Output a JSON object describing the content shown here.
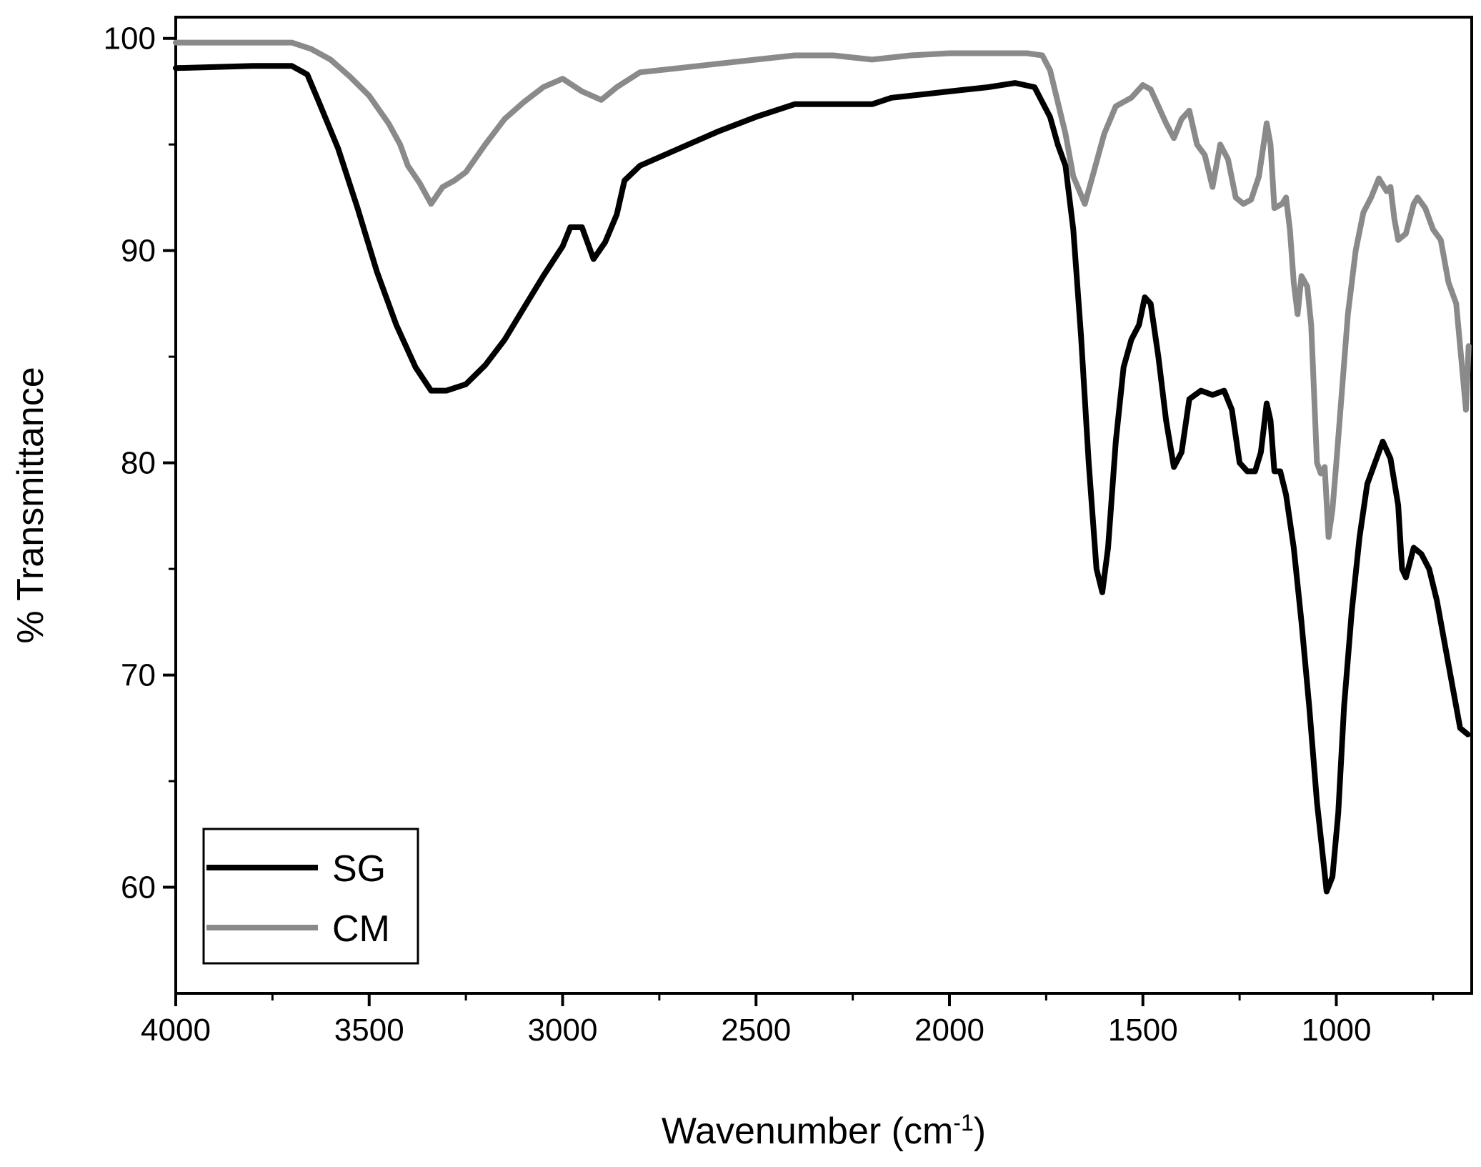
{
  "chart_data": {
    "type": "line",
    "title": "",
    "xlabel": "Wavenumber (cm",
    "xlabel_sup": "-1",
    "xlabel_close": ")",
    "ylabel": "% Transmittance",
    "xlim": [
      4000,
      650
    ],
    "ylim": [
      55,
      101
    ],
    "x_reversed": true,
    "x_ticks": [
      {
        "value": 4000,
        "label": "4000"
      },
      {
        "value": 3500,
        "label": "3500"
      },
      {
        "value": 3000,
        "label": "3000"
      },
      {
        "value": 2500,
        "label": "2500"
      },
      {
        "value": 2000,
        "label": "2000"
      },
      {
        "value": 1500,
        "label": "1500"
      },
      {
        "value": 1000,
        "label": "1000"
      }
    ],
    "x_minor_ticks": [
      3750,
      3250,
      2750,
      2250,
      1750,
      1250,
      750
    ],
    "y_ticks": [
      {
        "value": 60,
        "label": "60"
      },
      {
        "value": 70,
        "label": "70"
      },
      {
        "value": 80,
        "label": "80"
      },
      {
        "value": 90,
        "label": "90"
      },
      {
        "value": 100,
        "label": "100"
      }
    ],
    "y_minor_ticks": [
      65,
      75,
      85,
      95
    ],
    "grid": false,
    "legend": {
      "position": "bottom-left",
      "entries": [
        "SG",
        "CM"
      ]
    },
    "series": [
      {
        "name": "SG",
        "color": "#000000",
        "points": [
          [
            4000,
            98.6
          ],
          [
            3800,
            98.7
          ],
          [
            3700,
            98.7
          ],
          [
            3660,
            98.3
          ],
          [
            3630,
            97.0
          ],
          [
            3580,
            94.8
          ],
          [
            3530,
            92.0
          ],
          [
            3480,
            89.0
          ],
          [
            3430,
            86.5
          ],
          [
            3380,
            84.5
          ],
          [
            3340,
            83.4
          ],
          [
            3300,
            83.4
          ],
          [
            3250,
            83.7
          ],
          [
            3200,
            84.6
          ],
          [
            3150,
            85.8
          ],
          [
            3100,
            87.3
          ],
          [
            3050,
            88.8
          ],
          [
            3000,
            90.2
          ],
          [
            2980,
            91.1
          ],
          [
            2950,
            91.1
          ],
          [
            2920,
            89.6
          ],
          [
            2890,
            90.4
          ],
          [
            2860,
            91.7
          ],
          [
            2840,
            93.3
          ],
          [
            2800,
            94.0
          ],
          [
            2700,
            94.8
          ],
          [
            2600,
            95.6
          ],
          [
            2500,
            96.3
          ],
          [
            2400,
            96.9
          ],
          [
            2300,
            96.9
          ],
          [
            2200,
            96.9
          ],
          [
            2150,
            97.2
          ],
          [
            2100,
            97.3
          ],
          [
            2000,
            97.5
          ],
          [
            1900,
            97.7
          ],
          [
            1830,
            97.9
          ],
          [
            1780,
            97.7
          ],
          [
            1760,
            97.0
          ],
          [
            1740,
            96.3
          ],
          [
            1720,
            95.0
          ],
          [
            1700,
            94.0
          ],
          [
            1680,
            91.0
          ],
          [
            1660,
            86.0
          ],
          [
            1640,
            80.0
          ],
          [
            1620,
            75.0
          ],
          [
            1605,
            73.9
          ],
          [
            1590,
            76.0
          ],
          [
            1570,
            81.0
          ],
          [
            1550,
            84.5
          ],
          [
            1530,
            85.8
          ],
          [
            1510,
            86.5
          ],
          [
            1495,
            87.8
          ],
          [
            1480,
            87.5
          ],
          [
            1460,
            85.0
          ],
          [
            1440,
            82.0
          ],
          [
            1420,
            79.8
          ],
          [
            1400,
            80.5
          ],
          [
            1380,
            83.0
          ],
          [
            1350,
            83.4
          ],
          [
            1320,
            83.2
          ],
          [
            1290,
            83.4
          ],
          [
            1270,
            82.5
          ],
          [
            1250,
            80.0
          ],
          [
            1230,
            79.6
          ],
          [
            1210,
            79.6
          ],
          [
            1195,
            80.5
          ],
          [
            1180,
            82.8
          ],
          [
            1170,
            82.0
          ],
          [
            1160,
            79.6
          ],
          [
            1145,
            79.6
          ],
          [
            1130,
            78.5
          ],
          [
            1110,
            76.0
          ],
          [
            1090,
            72.5
          ],
          [
            1070,
            68.5
          ],
          [
            1050,
            64.0
          ],
          [
            1035,
            61.5
          ],
          [
            1025,
            59.8
          ],
          [
            1010,
            60.5
          ],
          [
            995,
            63.5
          ],
          [
            980,
            68.5
          ],
          [
            960,
            73.0
          ],
          [
            940,
            76.5
          ],
          [
            920,
            79.0
          ],
          [
            900,
            80.0
          ],
          [
            880,
            81.0
          ],
          [
            860,
            80.2
          ],
          [
            840,
            78.0
          ],
          [
            830,
            75.0
          ],
          [
            820,
            74.6
          ],
          [
            800,
            76.0
          ],
          [
            780,
            75.7
          ],
          [
            760,
            75.0
          ],
          [
            740,
            73.5
          ],
          [
            720,
            71.5
          ],
          [
            700,
            69.5
          ],
          [
            680,
            67.5
          ],
          [
            660,
            67.2
          ]
        ]
      },
      {
        "name": "CM",
        "color": "#8a8a8a",
        "points": [
          [
            4000,
            99.8
          ],
          [
            3900,
            99.8
          ],
          [
            3750,
            99.8
          ],
          [
            3700,
            99.8
          ],
          [
            3650,
            99.5
          ],
          [
            3600,
            99.0
          ],
          [
            3550,
            98.2
          ],
          [
            3500,
            97.3
          ],
          [
            3450,
            96.0
          ],
          [
            3420,
            95.0
          ],
          [
            3400,
            94.0
          ],
          [
            3370,
            93.2
          ],
          [
            3340,
            92.2
          ],
          [
            3310,
            93.0
          ],
          [
            3280,
            93.3
          ],
          [
            3250,
            93.7
          ],
          [
            3200,
            95.0
          ],
          [
            3150,
            96.2
          ],
          [
            3100,
            97.0
          ],
          [
            3050,
            97.7
          ],
          [
            3000,
            98.1
          ],
          [
            2950,
            97.5
          ],
          [
            2900,
            97.1
          ],
          [
            2860,
            97.7
          ],
          [
            2800,
            98.4
          ],
          [
            2700,
            98.6
          ],
          [
            2600,
            98.8
          ],
          [
            2500,
            99.0
          ],
          [
            2400,
            99.2
          ],
          [
            2300,
            99.2
          ],
          [
            2200,
            99.0
          ],
          [
            2100,
            99.2
          ],
          [
            2000,
            99.3
          ],
          [
            1900,
            99.3
          ],
          [
            1800,
            99.3
          ],
          [
            1760,
            99.2
          ],
          [
            1740,
            98.5
          ],
          [
            1720,
            97.0
          ],
          [
            1700,
            95.5
          ],
          [
            1680,
            93.5
          ],
          [
            1650,
            92.2
          ],
          [
            1630,
            93.5
          ],
          [
            1600,
            95.5
          ],
          [
            1570,
            96.8
          ],
          [
            1530,
            97.2
          ],
          [
            1500,
            97.8
          ],
          [
            1480,
            97.6
          ],
          [
            1460,
            96.8
          ],
          [
            1440,
            96.0
          ],
          [
            1420,
            95.3
          ],
          [
            1400,
            96.2
          ],
          [
            1380,
            96.6
          ],
          [
            1360,
            95.0
          ],
          [
            1340,
            94.5
          ],
          [
            1320,
            93.0
          ],
          [
            1300,
            95.0
          ],
          [
            1280,
            94.3
          ],
          [
            1260,
            92.5
          ],
          [
            1240,
            92.2
          ],
          [
            1220,
            92.4
          ],
          [
            1200,
            93.5
          ],
          [
            1180,
            96.0
          ],
          [
            1170,
            95.0
          ],
          [
            1160,
            92.0
          ],
          [
            1140,
            92.2
          ],
          [
            1130,
            92.5
          ],
          [
            1120,
            91.0
          ],
          [
            1110,
            88.5
          ],
          [
            1100,
            87.0
          ],
          [
            1090,
            88.8
          ],
          [
            1075,
            88.3
          ],
          [
            1065,
            86.5
          ],
          [
            1050,
            80.0
          ],
          [
            1040,
            79.5
          ],
          [
            1030,
            79.8
          ],
          [
            1020,
            76.5
          ],
          [
            1010,
            77.8
          ],
          [
            1000,
            80.0
          ],
          [
            985,
            83.5
          ],
          [
            970,
            87.0
          ],
          [
            950,
            90.0
          ],
          [
            930,
            91.8
          ],
          [
            910,
            92.5
          ],
          [
            890,
            93.4
          ],
          [
            870,
            92.8
          ],
          [
            860,
            93.0
          ],
          [
            850,
            91.5
          ],
          [
            840,
            90.5
          ],
          [
            820,
            90.8
          ],
          [
            800,
            92.2
          ],
          [
            790,
            92.5
          ],
          [
            770,
            92.0
          ],
          [
            750,
            91.0
          ],
          [
            730,
            90.5
          ],
          [
            710,
            88.5
          ],
          [
            690,
            87.5
          ],
          [
            675,
            84.5
          ],
          [
            665,
            82.5
          ],
          [
            658,
            85.5
          ]
        ]
      }
    ]
  }
}
